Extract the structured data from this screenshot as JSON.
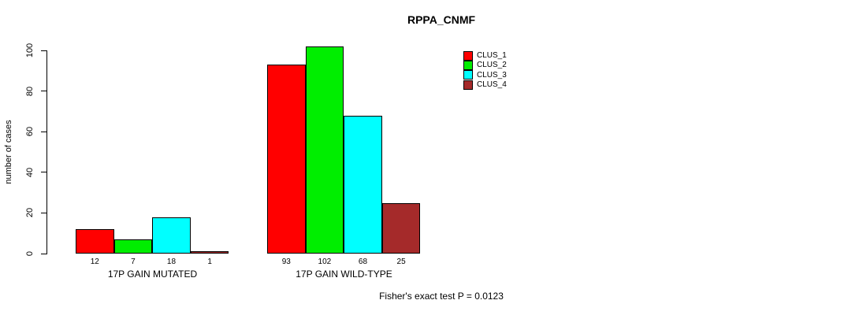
{
  "title": "RPPA_CNMF",
  "footer": "Fisher's exact test P = 0.0123",
  "chart_data": {
    "type": "bar",
    "title": "RPPA_CNMF",
    "xlabel": "",
    "ylabel": "number of cases",
    "ylim": [
      0,
      100
    ],
    "yticks": [
      0,
      20,
      40,
      60,
      80,
      100
    ],
    "grid": false,
    "legend_position": "top-right",
    "bar_value_labels_shown": true,
    "groups": [
      "17P GAIN MUTATED",
      "17P GAIN WILD-TYPE"
    ],
    "series": [
      {
        "name": "CLUS_1",
        "color": "#FF0000",
        "values": [
          12,
          93
        ]
      },
      {
        "name": "CLUS_2",
        "color": "#00EE00",
        "values": [
          7,
          102
        ]
      },
      {
        "name": "CLUS_3",
        "color": "#00FFFF",
        "values": [
          18,
          68
        ]
      },
      {
        "name": "CLUS_4",
        "color": "#A52A2A",
        "values": [
          1,
          25
        ]
      }
    ],
    "annotation": "Fisher's exact test P = 0.0123"
  }
}
